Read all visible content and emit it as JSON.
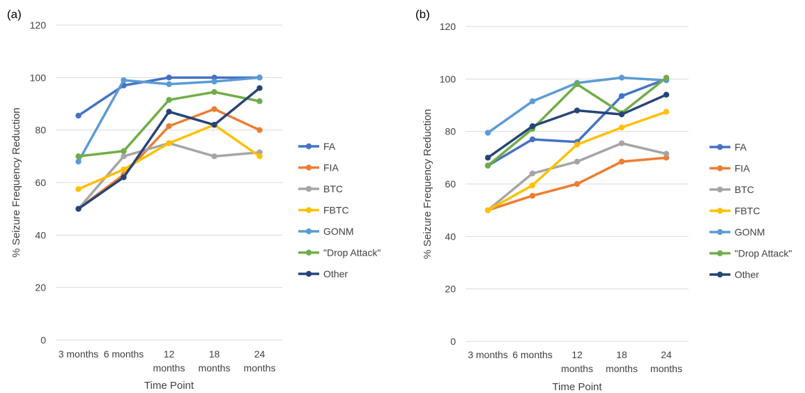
{
  "chart_data": [
    {
      "type": "line",
      "panel_label": "(a)",
      "xlabel": "Time Point",
      "ylabel": "% Seizure Frequency Reduction",
      "ylim": [
        0,
        120
      ],
      "yticks": [
        "0",
        "20",
        "40",
        "60",
        "80",
        "100",
        "120"
      ],
      "categories": [
        [
          "3 months"
        ],
        [
          "6 months"
        ],
        [
          "12",
          "months"
        ],
        [
          "18",
          "months"
        ],
        [
          "24",
          "months"
        ]
      ],
      "legend_position": "right",
      "grid": true,
      "series": [
        {
          "name": "FA",
          "color": "#4472C4",
          "values": [
            85.5,
            97,
            100,
            100,
            100
          ]
        },
        {
          "name": "FIA",
          "color": "#ED7D31",
          "values": [
            50,
            63,
            81.5,
            88,
            80
          ]
        },
        {
          "name": "BTC",
          "color": "#A5A5A5",
          "values": [
            50,
            70,
            75,
            70,
            71.5
          ]
        },
        {
          "name": "FBTC",
          "color": "#FFC000",
          "values": [
            57.5,
            65,
            75,
            82,
            70
          ]
        },
        {
          "name": "GONM",
          "color": "#5B9BD5",
          "values": [
            68,
            99,
            97.5,
            98.5,
            100
          ]
        },
        {
          "name": "\"Drop Attack\"",
          "color": "#70AD47",
          "values": [
            70,
            72,
            91.5,
            94.5,
            91
          ]
        },
        {
          "name": "Other",
          "color": "#264478",
          "values": [
            50,
            62,
            87,
            82,
            96
          ]
        }
      ]
    },
    {
      "type": "line",
      "panel_label": "(b)",
      "xlabel": "Time Point",
      "ylabel": "% Seizure Frequency Reduction",
      "ylim": [
        0,
        120
      ],
      "yticks": [
        "0",
        "20",
        "40",
        "60",
        "80",
        "100",
        "120"
      ],
      "categories": [
        [
          "3 months"
        ],
        [
          "6 months"
        ],
        [
          "12",
          "months"
        ],
        [
          "18",
          "months"
        ],
        [
          "24",
          "months"
        ]
      ],
      "legend_position": "right",
      "grid": true,
      "series": [
        {
          "name": "FA",
          "color": "#4472C4",
          "values": [
            67,
            77,
            76,
            93.5,
            100
          ]
        },
        {
          "name": "FIA",
          "color": "#ED7D31",
          "values": [
            50,
            55.5,
            60,
            68.5,
            70
          ]
        },
        {
          "name": "BTC",
          "color": "#A5A5A5",
          "values": [
            50,
            64,
            68.5,
            75.5,
            71.5
          ]
        },
        {
          "name": "FBTC",
          "color": "#FFC000",
          "values": [
            50,
            59.5,
            75,
            81.5,
            87.5
          ]
        },
        {
          "name": "GONM",
          "color": "#5B9BD5",
          "values": [
            79.5,
            91.5,
            98.5,
            100.5,
            99.5
          ]
        },
        {
          "name": "\"Drop Attack\"",
          "color": "#70AD47",
          "values": [
            67,
            81,
            98,
            87,
            100.5
          ]
        },
        {
          "name": "Other",
          "color": "#264478",
          "values": [
            70,
            82,
            88,
            86.5,
            94
          ]
        }
      ]
    }
  ]
}
